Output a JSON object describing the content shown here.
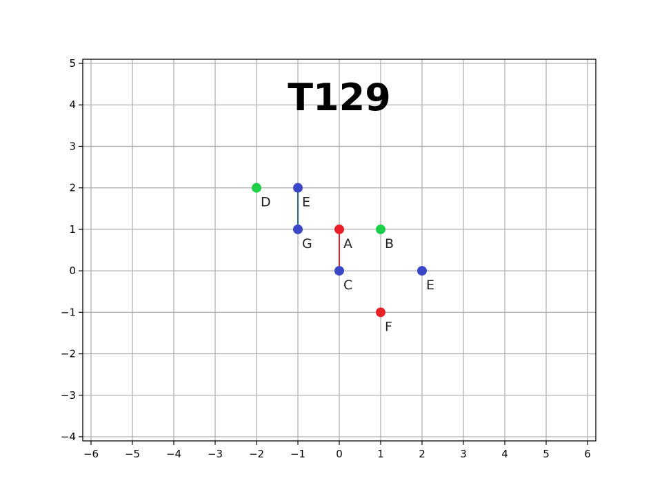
{
  "chart_data": {
    "type": "scatter",
    "title": "T129",
    "xlabel": "",
    "ylabel": "",
    "xlim": [
      -6.2,
      6.2
    ],
    "ylim": [
      -4.1,
      5.1
    ],
    "grid": true,
    "x_ticks": [
      -6,
      -5,
      -4,
      -3,
      -2,
      -1,
      0,
      1,
      2,
      3,
      4,
      5,
      6
    ],
    "y_ticks": [
      -4,
      -3,
      -2,
      -1,
      0,
      1,
      2,
      3,
      4,
      5
    ],
    "x_tick_labels": [
      "−6",
      "−5",
      "−4",
      "−3",
      "−2",
      "−1",
      "0",
      "1",
      "2",
      "3",
      "4",
      "5",
      "6"
    ],
    "y_tick_labels": [
      "−4",
      "−3",
      "−2",
      "−1",
      "0",
      "1",
      "2",
      "3",
      "4",
      "5"
    ],
    "points": [
      {
        "label": "A",
        "x": 0,
        "y": 1,
        "color": "#e8202a"
      },
      {
        "label": "B",
        "x": 1,
        "y": 1,
        "color": "#1ecf4a"
      },
      {
        "label": "C",
        "x": 0,
        "y": 0,
        "color": "#3a47c8"
      },
      {
        "label": "D",
        "x": -2,
        "y": 2,
        "color": "#1ecf4a"
      },
      {
        "label": "E",
        "x": -1,
        "y": 2,
        "color": "#3a47c8"
      },
      {
        "label": "G",
        "x": -1,
        "y": 1,
        "color": "#3a47c8"
      },
      {
        "label": "E",
        "x": 2,
        "y": 0,
        "color": "#3a47c8"
      },
      {
        "label": "F",
        "x": 1,
        "y": -1,
        "color": "#e8202a"
      }
    ],
    "segments": [
      {
        "from": [
          -1,
          2
        ],
        "to": [
          -1,
          1
        ],
        "color": "#1f6f8b"
      },
      {
        "from": [
          0,
          1
        ],
        "to": [
          0,
          0
        ],
        "color": "#e8202a"
      }
    ]
  }
}
